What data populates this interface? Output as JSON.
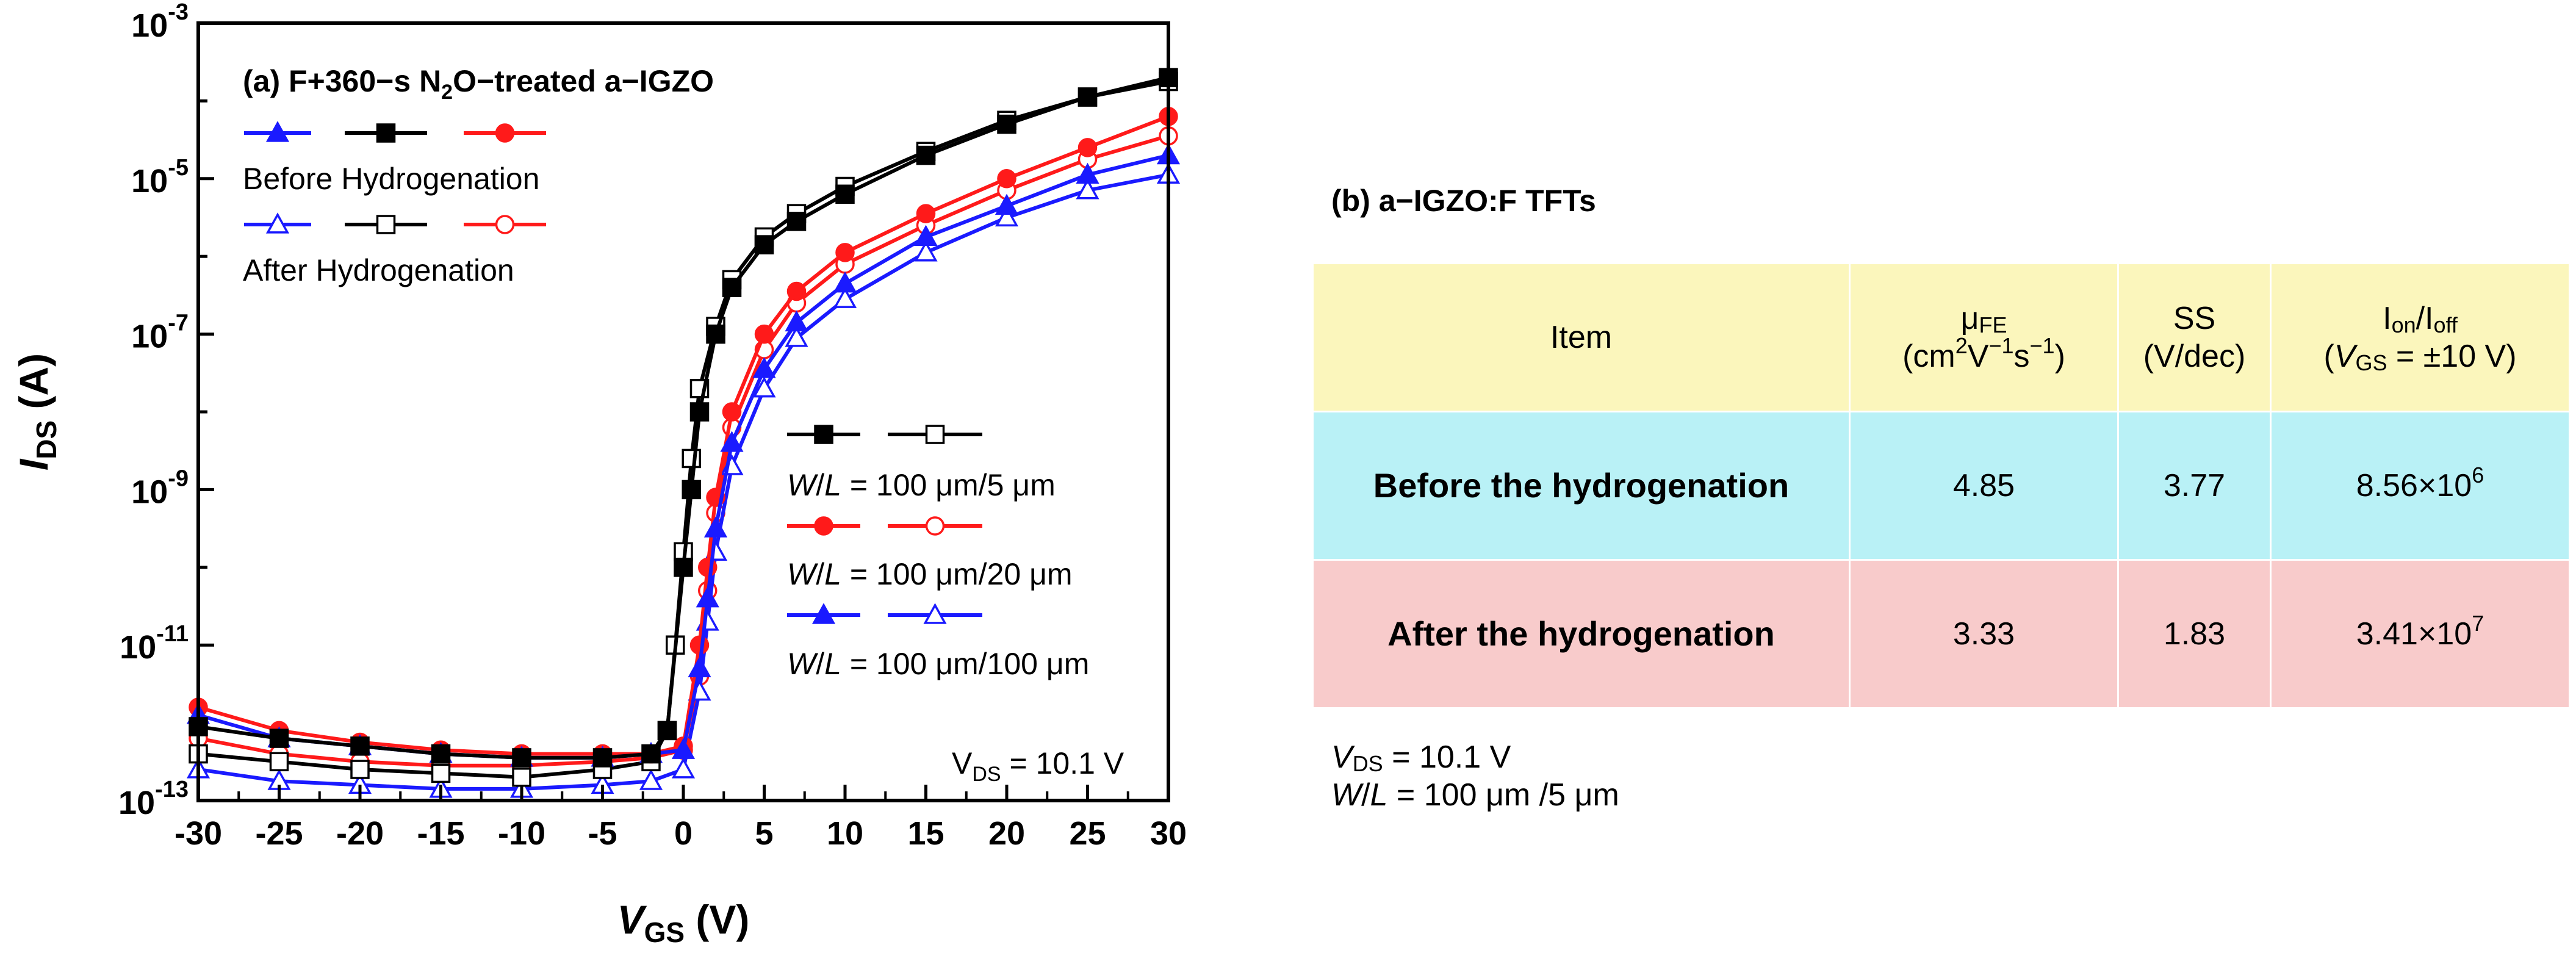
{
  "chart_data": {
    "type": "line",
    "title": "(a) F+360-s N2O-treated a-IGZO",
    "title_parts": {
      "prefix": "(a) F+360−s N",
      "sub": "2",
      "suffix": "O−treated a−IGZO"
    },
    "xlabel": {
      "main": "V",
      "sub": "GS",
      "unit": " (V)"
    },
    "ylabel": {
      "main": "I",
      "sub": "DS",
      "unit": " (A)"
    },
    "xlim": [
      -30,
      30
    ],
    "ylim_log10": [
      -13,
      -3
    ],
    "y_scale": "log",
    "x_ticks": [
      "-30",
      "-25",
      "-20",
      "-15",
      "-10",
      "-5",
      "0",
      "5",
      "10",
      "15",
      "20",
      "25",
      "30"
    ],
    "y_ticks": [
      {
        "base": "10",
        "exp": "-3"
      },
      {
        "base": "10",
        "exp": "-5"
      },
      {
        "base": "10",
        "exp": "-7"
      },
      {
        "base": "10",
        "exp": "-9"
      },
      {
        "base": "10",
        "exp": "-11"
      },
      {
        "base": "10",
        "exp": "-13"
      }
    ],
    "legend_groups": {
      "before": "Before Hydrogenation",
      "after": "After Hydrogenation"
    },
    "wl_labels": [
      "W/L = 100 μm/5 μm",
      "W/L = 100 μm/20 μm",
      "W/L = 100 μm/100 μm"
    ],
    "wl_label_parts": [
      {
        "w": "W",
        "slash": "/",
        "l": "L",
        "rest": " = 100 μm/5 μm"
      },
      {
        "w": "W",
        "slash": "/",
        "l": "L",
        "rest": " = 100 μm/20 μm"
      },
      {
        "w": "W",
        "slash": "/",
        "l": "L",
        "rest": " = 100 μm/100 μm"
      }
    ],
    "vds_annotation": {
      "main": "V",
      "sub": "DS",
      "rest": " = 10.1 V"
    },
    "series": [
      {
        "name": "W/L = 100 μm/5 μm, Before Hydrogenation",
        "color": "#000000",
        "marker": "square",
        "filled": true,
        "x": [
          -30,
          -25,
          -20,
          -15,
          -10,
          -5,
          -2,
          -1,
          0,
          0.5,
          1,
          2,
          3,
          5,
          7,
          10,
          15,
          20,
          25,
          30
        ],
        "log10_y": [
          -12.05,
          -12.2,
          -12.3,
          -12.4,
          -12.45,
          -12.45,
          -12.4,
          -12.1,
          -10.0,
          -9.0,
          -8.0,
          -7.0,
          -6.4,
          -5.85,
          -5.55,
          -5.2,
          -4.7,
          -4.3,
          -3.95,
          -3.7
        ]
      },
      {
        "name": "W/L = 100 μm/5 μm, After Hydrogenation",
        "color": "#000000",
        "marker": "square",
        "filled": false,
        "x": [
          -30,
          -25,
          -20,
          -15,
          -10,
          -5,
          -2,
          -1,
          -0.5,
          0,
          0.5,
          1,
          2,
          3,
          5,
          7,
          10,
          15,
          20,
          25,
          30
        ],
        "log10_y": [
          -12.4,
          -12.5,
          -12.6,
          -12.65,
          -12.7,
          -12.6,
          -12.5,
          -12.1,
          -11.0,
          -9.8,
          -8.6,
          -7.7,
          -6.9,
          -6.3,
          -5.75,
          -5.45,
          -5.1,
          -4.65,
          -4.25,
          -3.95,
          -3.75
        ]
      },
      {
        "name": "W/L = 100 μm/20 μm, Before Hydrogenation",
        "color": "#ff1a1a",
        "marker": "circle",
        "filled": true,
        "x": [
          -30,
          -25,
          -20,
          -15,
          -10,
          -5,
          -2,
          0,
          1,
          1.5,
          2,
          3,
          5,
          7,
          10,
          15,
          20,
          25,
          30
        ],
        "log10_y": [
          -11.8,
          -12.1,
          -12.25,
          -12.35,
          -12.4,
          -12.4,
          -12.4,
          -12.3,
          -11.0,
          -10.0,
          -9.1,
          -8.0,
          -7.0,
          -6.45,
          -5.95,
          -5.45,
          -5.0,
          -4.6,
          -4.2
        ]
      },
      {
        "name": "W/L = 100 μm/20 μm, After Hydrogenation",
        "color": "#ff1a1a",
        "marker": "circle",
        "filled": false,
        "x": [
          -30,
          -25,
          -20,
          -15,
          -10,
          -5,
          -2,
          0,
          1,
          1.5,
          2,
          3,
          5,
          7,
          10,
          15,
          20,
          25,
          30
        ],
        "log10_y": [
          -12.2,
          -12.4,
          -12.5,
          -12.55,
          -12.55,
          -12.5,
          -12.45,
          -12.35,
          -11.4,
          -10.3,
          -9.3,
          -8.2,
          -7.2,
          -6.6,
          -6.1,
          -5.6,
          -5.15,
          -4.75,
          -4.45
        ]
      },
      {
        "name": "W/L = 100 μm/100 μm, Before Hydrogenation",
        "color": "#1a1aff",
        "marker": "triangle",
        "filled": true,
        "x": [
          -30,
          -25,
          -20,
          -15,
          -10,
          -5,
          -2,
          0,
          1,
          1.5,
          2,
          3,
          5,
          7,
          10,
          15,
          20,
          25,
          30
        ],
        "log10_y": [
          -11.9,
          -12.2,
          -12.3,
          -12.4,
          -12.45,
          -12.45,
          -12.4,
          -12.35,
          -11.3,
          -10.4,
          -9.5,
          -8.4,
          -7.45,
          -6.85,
          -6.35,
          -5.75,
          -5.35,
          -4.95,
          -4.7
        ]
      },
      {
        "name": "W/L = 100 μm/100 μm, After Hydrogenation",
        "color": "#1a1aff",
        "marker": "triangle",
        "filled": false,
        "x": [
          -30,
          -25,
          -20,
          -15,
          -10,
          -5,
          -2,
          0,
          1,
          1.5,
          2,
          3,
          5,
          7,
          10,
          15,
          20,
          25,
          30
        ],
        "log10_y": [
          -12.6,
          -12.75,
          -12.8,
          -12.85,
          -12.85,
          -12.8,
          -12.75,
          -12.6,
          -11.6,
          -10.7,
          -9.8,
          -8.7,
          -7.7,
          -7.05,
          -6.55,
          -5.95,
          -5.5,
          -5.15,
          -4.95
        ]
      }
    ]
  },
  "panel_b": {
    "title": "(b) a−IGZO:F TFTs",
    "header": {
      "item": "Item",
      "mu_symbol": "μ",
      "mu_sub": "FE",
      "mu_unit_open": "(cm",
      "mu_unit_exp1": "2",
      "mu_unit_mid1": "V",
      "mu_unit_exp2": "−1",
      "mu_unit_mid2": "s",
      "mu_unit_exp3": "−1",
      "mu_unit_close": ")",
      "ss": "SS",
      "ss_unit": "(V/dec)",
      "ion_i": "I",
      "ion_sub": "on",
      "ion_slash": "/I",
      "ioff_sub": "off",
      "cond_open": "(",
      "cond_v": "V",
      "cond_sub": "GS",
      "cond_rest": " = ±10 V)"
    },
    "rows": [
      {
        "label": "Before the hydrogenation",
        "mu": "4.85",
        "ss": "3.77",
        "ratio_base": "8.56×10",
        "ratio_exp": "6",
        "color": "#b9f1f6"
      },
      {
        "label": "After the hydrogenation",
        "mu": "3.33",
        "ss": "1.83",
        "ratio_base": "3.41×10",
        "ratio_exp": "7",
        "color": "#f8cbcb"
      }
    ],
    "notes": {
      "vds_main": "V",
      "vds_sub": "DS",
      "vds_rest": " = 10.1 V",
      "wl_w": "W",
      "wl_slash": "/",
      "wl_l": "L",
      "wl_rest": " = 100 μm /5  μm"
    },
    "header_color": "#fbf6bc"
  }
}
